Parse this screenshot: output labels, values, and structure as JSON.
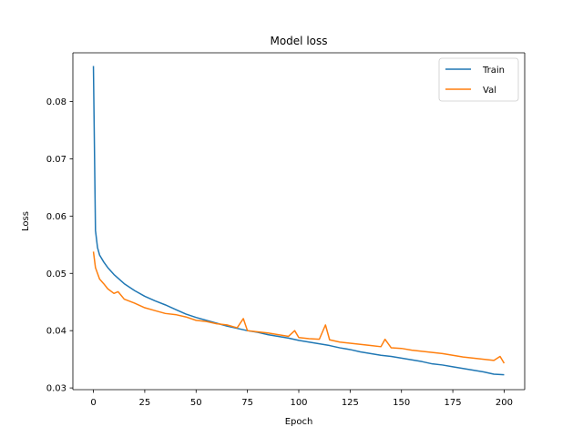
{
  "chart_data": {
    "type": "line",
    "title": "Model loss",
    "xlabel": "Epoch",
    "ylabel": "Loss",
    "xlim": [
      -10,
      210
    ],
    "ylim": [
      0.0297,
      0.0885
    ],
    "xticks": [
      0,
      25,
      50,
      75,
      100,
      125,
      150,
      175,
      200
    ],
    "yticks": [
      0.03,
      0.04,
      0.05,
      0.06,
      0.07,
      0.08
    ],
    "ytick_labels": [
      "0.03",
      "0.04",
      "0.05",
      "0.06",
      "0.07",
      "0.08"
    ],
    "legend_position": "top-right",
    "grid": false,
    "series": [
      {
        "name": "Train",
        "color": "#1f77b4",
        "x": [
          0,
          1,
          2,
          3,
          5,
          7,
          10,
          15,
          20,
          25,
          30,
          35,
          40,
          45,
          50,
          55,
          60,
          65,
          70,
          75,
          80,
          85,
          90,
          95,
          100,
          105,
          110,
          115,
          120,
          125,
          130,
          135,
          140,
          145,
          150,
          155,
          160,
          165,
          170,
          175,
          180,
          185,
          190,
          195,
          200
        ],
        "values": [
          0.0862,
          0.0575,
          0.0545,
          0.0532,
          0.052,
          0.051,
          0.0498,
          0.0482,
          0.047,
          0.046,
          0.0452,
          0.0445,
          0.0437,
          0.0429,
          0.0423,
          0.0418,
          0.0413,
          0.0408,
          0.0404,
          0.04,
          0.0397,
          0.0393,
          0.039,
          0.0387,
          0.0383,
          0.038,
          0.0377,
          0.0374,
          0.037,
          0.0367,
          0.0363,
          0.036,
          0.0357,
          0.0355,
          0.0352,
          0.0349,
          0.0346,
          0.0342,
          0.034,
          0.0337,
          0.0334,
          0.0331,
          0.0328,
          0.0324,
          0.0323
        ]
      },
      {
        "name": "Val",
        "color": "#ff7f0e",
        "x": [
          0,
          1,
          2,
          3,
          5,
          7,
          10,
          12,
          15,
          20,
          25,
          30,
          35,
          40,
          45,
          50,
          55,
          60,
          65,
          70,
          73,
          75,
          80,
          85,
          90,
          95,
          98,
          100,
          105,
          110,
          113,
          115,
          120,
          125,
          130,
          135,
          140,
          142,
          145,
          150,
          155,
          160,
          165,
          170,
          175,
          180,
          185,
          190,
          195,
          198,
          200
        ],
        "values": [
          0.0538,
          0.051,
          0.05,
          0.049,
          0.0482,
          0.0473,
          0.0465,
          0.0468,
          0.0455,
          0.0448,
          0.044,
          0.0435,
          0.043,
          0.0428,
          0.0424,
          0.0418,
          0.0416,
          0.0412,
          0.041,
          0.0405,
          0.0421,
          0.04,
          0.0398,
          0.0396,
          0.0393,
          0.039,
          0.04,
          0.0388,
          0.0386,
          0.0385,
          0.041,
          0.0384,
          0.038,
          0.0378,
          0.0376,
          0.0374,
          0.0372,
          0.0385,
          0.037,
          0.0369,
          0.0366,
          0.0364,
          0.0362,
          0.036,
          0.0357,
          0.0354,
          0.0352,
          0.035,
          0.0348,
          0.0355,
          0.0343
        ]
      }
    ]
  }
}
